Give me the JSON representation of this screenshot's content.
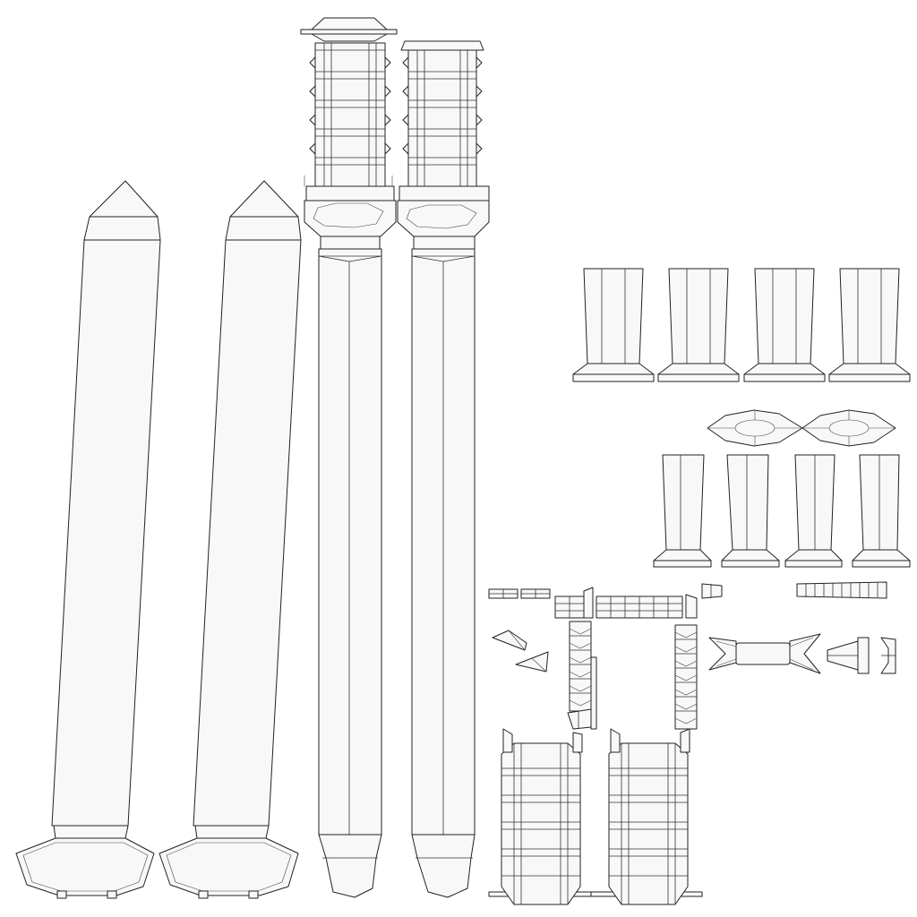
{
  "colors": {
    "background": "#ffffff",
    "fill": "#f8f8f8",
    "stroke": "#222222"
  },
  "islands": [
    "left-pillar-1",
    "left-pillar-2",
    "center-column-1",
    "center-column-2",
    "pedestal-pieces-top",
    "octagon-pieces",
    "pedestal-pieces-bottom",
    "small-pieces",
    "bottom-column-sections"
  ]
}
